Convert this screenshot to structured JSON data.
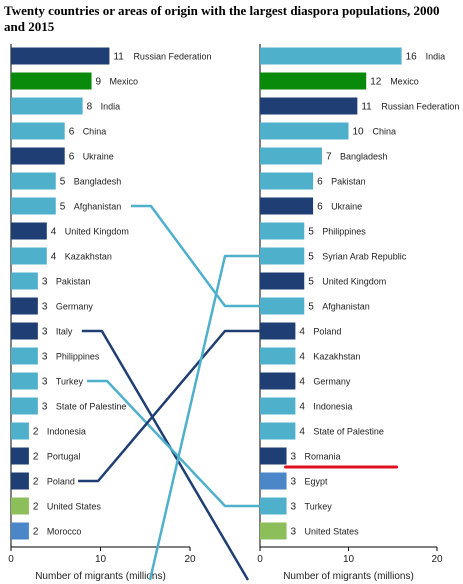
{
  "chart_data": [
    {
      "type": "bar",
      "orientation": "horizontal",
      "title": "Twenty countries or areas of origin with the largest diaspora populations, 2000 and 2015",
      "xlabel": "Number of migrants (millions)",
      "xlim": [
        0,
        20
      ],
      "xticks": [
        "0",
        "10",
        "20"
      ],
      "categories": [
        "Russian Federation",
        "Mexico",
        "India",
        "China",
        "Ukraine",
        "Bangladesh",
        "Afghanistan",
        "United Kingdom",
        "Kazakhstan",
        "Pakistan",
        "Germany",
        "Italy",
        "Philippines",
        "Turkey",
        "State of Palestine",
        "Indonesia",
        "Portugal",
        "Poland",
        "United States",
        "Morocco"
      ],
      "values": [
        11,
        9,
        8,
        6,
        6,
        5,
        5,
        4,
        4,
        3,
        3,
        3,
        3,
        3,
        3,
        2,
        2,
        2,
        2,
        2
      ],
      "colors": [
        "#1f3e73",
        "#0a8a0a",
        "#4fb0cb",
        "#4fb0cb",
        "#1f3e73",
        "#4fb0cb",
        "#4fb0cb",
        "#1f3e73",
        "#4fb0cb",
        "#4fb0cb",
        "#1f3e73",
        "#1f3e73",
        "#4fb0cb",
        "#4fb0cb",
        "#4fb0cb",
        "#4fb0cb",
        "#1f3e73",
        "#1f3e73",
        "#8cbf5a",
        "#4a86c8"
      ]
    },
    {
      "type": "bar",
      "orientation": "horizontal",
      "xlabel": "Number of migrants (millions)",
      "xlim": [
        0,
        20
      ],
      "xticks": [
        "0",
        "10",
        "20"
      ],
      "categories": [
        "India",
        "Mexico",
        "Russian Federation",
        "China",
        "Bangladesh",
        "Pakistan",
        "Ukraine",
        "Philippines",
        "Syrian Arab Republic",
        "United Kingdom",
        "Afghanistan",
        "Poland",
        "Kazakhstan",
        "Germany",
        "Indonesia",
        "State of Palestine",
        "Romania",
        "Egypt",
        "Turkey",
        "United States"
      ],
      "values": [
        16,
        12,
        11,
        10,
        7,
        6,
        6,
        5,
        5,
        5,
        5,
        4,
        4,
        4,
        4,
        4,
        3,
        3,
        3,
        3
      ],
      "colors": [
        "#4fb0cb",
        "#0a8a0a",
        "#1f3e73",
        "#4fb0cb",
        "#4fb0cb",
        "#4fb0cb",
        "#1f3e73",
        "#4fb0cb",
        "#4fb0cb",
        "#1f3e73",
        "#4fb0cb",
        "#1f3e73",
        "#4fb0cb",
        "#1f3e73",
        "#4fb0cb",
        "#4fb0cb",
        "#1f3e73",
        "#4a86c8",
        "#4fb0cb",
        "#8cbf5a"
      ],
      "highlight": "Romania",
      "highlight_color": "#e01020"
    }
  ],
  "connectors": [
    {
      "from": "Afghanistan",
      "to": "Afghanistan",
      "color": "#4fb0cb"
    },
    {
      "from": "Italy",
      "to": "",
      "color": "#1f3e73"
    },
    {
      "from": "Turkey",
      "to": "Turkey",
      "color": "#4fb0cb"
    },
    {
      "from": "Poland",
      "to": "Poland",
      "color": "#1f3e73"
    },
    {
      "from": "",
      "to": "Syrian Arab Republic",
      "color": "#4fb0cb"
    }
  ]
}
